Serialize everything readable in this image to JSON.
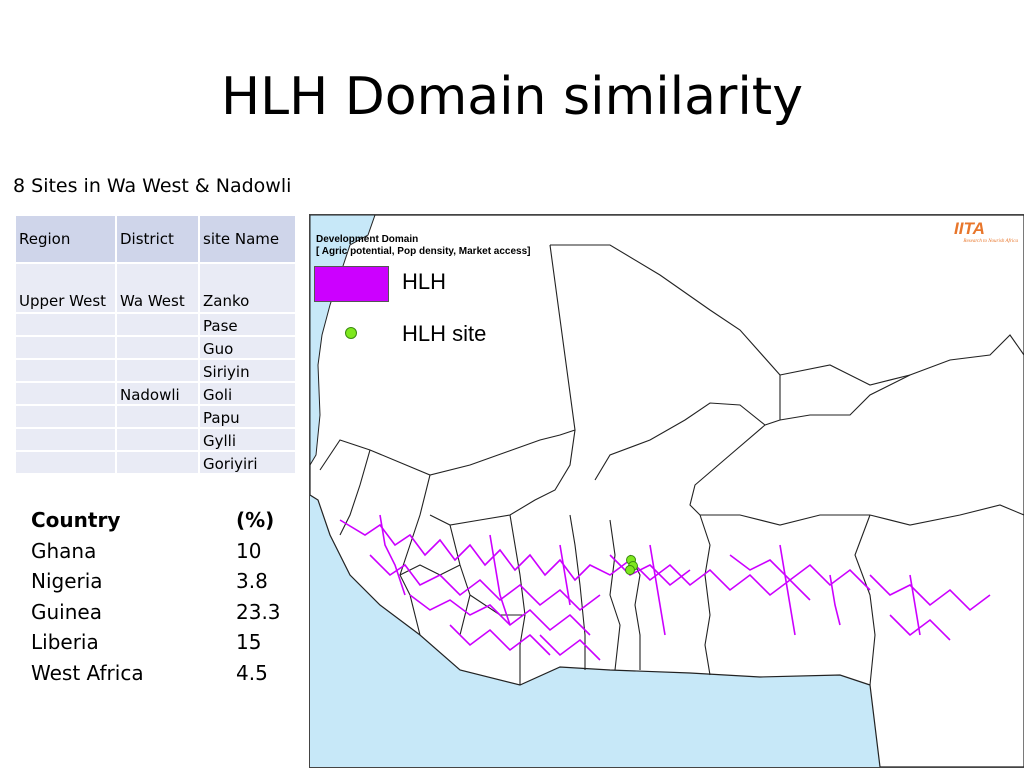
{
  "title": "HLH Domain similarity",
  "subtitle": "8 Sites in Wa West & Nadowli",
  "sites_table": {
    "headers": [
      "Region",
      "District",
      "site Name"
    ],
    "rows": [
      [
        "Upper West",
        "Wa West",
        "Zanko"
      ],
      [
        "",
        "",
        "Pase"
      ],
      [
        "",
        "",
        "Guo"
      ],
      [
        "",
        "",
        "Siriyin"
      ],
      [
        "",
        "Nadowli",
        "Goli"
      ],
      [
        "",
        "",
        "Papu"
      ],
      [
        "",
        "",
        "Gylli"
      ],
      [
        "",
        "",
        "Goriyiri"
      ]
    ]
  },
  "stats": {
    "header": [
      "Country",
      "(%)"
    ],
    "rows": [
      [
        "Ghana",
        "10"
      ],
      [
        "Nigeria",
        "3.8"
      ],
      [
        "Guinea",
        "23.3"
      ],
      [
        "Liberia",
        "15"
      ],
      [
        "West Africa",
        "4.5"
      ]
    ]
  },
  "map": {
    "legend_title_line1": "Development Domain",
    "legend_title_line2": "[ Agric potential, Pop density, Market access]",
    "legend_hlh": "HLH",
    "legend_site": "HLH site",
    "logo_text": "IITA",
    "logo_tagline": "Research to Nourish Africa",
    "colors": {
      "domain": "#cc00ff",
      "site": "#7ee81e",
      "sea": "#c7e8f8",
      "land": "#ffffff"
    }
  }
}
